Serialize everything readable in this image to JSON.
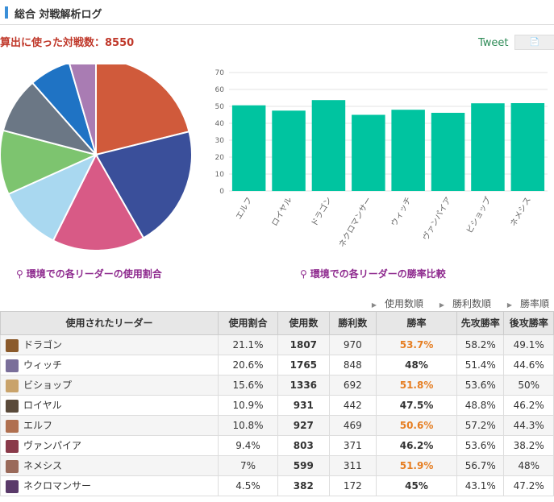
{
  "header": {
    "title": "総合 対戦解析ログ"
  },
  "battle_count_text": "算出に使った対戦数：8550",
  "tweet_label": "Tweet",
  "share_icon": "document-icon",
  "captions": {
    "pie": "環境での各リーダーの使用割合",
    "bar": "環境での各リーダーの勝率比較"
  },
  "sort_links": [
    "使用数順",
    "勝利数順",
    "勝率順"
  ],
  "colors": {
    "accent": "#3a8fd8",
    "count_text": "#c0392b",
    "caption": "#8e2a8e",
    "bar": "#00c4a0",
    "win_highlight": "#e67e22"
  },
  "chart_data": [
    {
      "type": "pie",
      "title": "",
      "categories": [
        "ドラゴン",
        "ウィッチ",
        "ビショップ",
        "ロイヤル",
        "エルフ",
        "ヴァンパイア",
        "ネメシス",
        "ネクロマンサー"
      ],
      "values": [
        21.1,
        20.6,
        15.6,
        10.9,
        10.8,
        9.4,
        7.0,
        4.5
      ],
      "colors": [
        "#d05a3b",
        "#3a4f9a",
        "#d85a86",
        "#a9d8f0",
        "#7dc46f",
        "#6b7785",
        "#1f73c4",
        "#a97cb3"
      ]
    },
    {
      "type": "bar",
      "title": "",
      "categories": [
        "エルフ",
        "ロイヤル",
        "ドラゴン",
        "ネクロマンサー",
        "ウィッチ",
        "ヴァンパイア",
        "ビショップ",
        "ネメシス"
      ],
      "values": [
        50.6,
        47.5,
        53.7,
        45.0,
        48.0,
        46.2,
        51.8,
        51.9
      ],
      "ylim": [
        0,
        70
      ],
      "yticks": [
        0,
        10,
        20,
        30,
        40,
        50,
        60,
        70
      ],
      "grid": true,
      "xlabel": "",
      "ylabel": ""
    }
  ],
  "table": {
    "headers": [
      "使用されたリーダー",
      "使用割合",
      "使用数",
      "勝利数",
      "勝率",
      "先攻勝率",
      "後攻勝率"
    ],
    "rows": [
      {
        "leader": "ドラゴン",
        "share": "21.1%",
        "used": "1807",
        "wins": "970",
        "winrate": "53.7%",
        "first": "58.2%",
        "second": "49.1%",
        "high": true,
        "avatar": "#8b5a2b"
      },
      {
        "leader": "ウィッチ",
        "share": "20.6%",
        "used": "1765",
        "wins": "848",
        "winrate": "48%",
        "first": "51.4%",
        "second": "44.6%",
        "high": false,
        "avatar": "#7a6f9a"
      },
      {
        "leader": "ビショップ",
        "share": "15.6%",
        "used": "1336",
        "wins": "692",
        "winrate": "51.8%",
        "first": "53.6%",
        "second": "50%",
        "high": true,
        "avatar": "#c9a36b"
      },
      {
        "leader": "ロイヤル",
        "share": "10.9%",
        "used": "931",
        "wins": "442",
        "winrate": "47.5%",
        "first": "48.8%",
        "second": "46.2%",
        "high": false,
        "avatar": "#5a4a3a"
      },
      {
        "leader": "エルフ",
        "share": "10.8%",
        "used": "927",
        "wins": "469",
        "winrate": "50.6%",
        "first": "57.2%",
        "second": "44.3%",
        "high": true,
        "avatar": "#b07050"
      },
      {
        "leader": "ヴァンパイア",
        "share": "9.4%",
        "used": "803",
        "wins": "371",
        "winrate": "46.2%",
        "first": "53.6%",
        "second": "38.2%",
        "high": false,
        "avatar": "#8a3a4a"
      },
      {
        "leader": "ネメシス",
        "share": "7%",
        "used": "599",
        "wins": "311",
        "winrate": "51.9%",
        "first": "56.7%",
        "second": "48%",
        "high": true,
        "avatar": "#9a6a5a"
      },
      {
        "leader": "ネクロマンサー",
        "share": "4.5%",
        "used": "382",
        "wins": "172",
        "winrate": "45%",
        "first": "43.1%",
        "second": "47.2%",
        "high": false,
        "avatar": "#5a3a6a"
      }
    ]
  }
}
